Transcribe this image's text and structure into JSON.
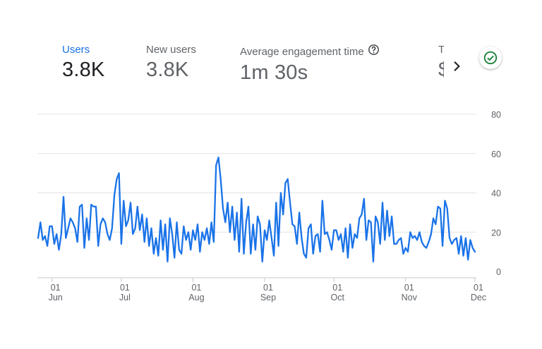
{
  "metrics": [
    {
      "label": "Users",
      "value": "3.8K"
    },
    {
      "label": "New users",
      "value": "3.8K"
    },
    {
      "label": "Average engagement time",
      "value": "1m 30s"
    },
    {
      "label": "T",
      "value": "$"
    }
  ],
  "icons": {
    "help": "help-circle-icon",
    "next": "chevron-right-icon",
    "status": "check-circle-icon"
  },
  "colors": {
    "series": "#1a73e8",
    "status_green": "#188038",
    "accent": "#1a73e8"
  },
  "chart_data": {
    "type": "line",
    "series": [
      {
        "name": "Users",
        "values": [
          17,
          25,
          16,
          18,
          13,
          23,
          23,
          14,
          19,
          11,
          19,
          38,
          17,
          22,
          27,
          25,
          22,
          15,
          33,
          34,
          12,
          27,
          16,
          34,
          33,
          33,
          13,
          24,
          27,
          25,
          19,
          16,
          22,
          39,
          47,
          50,
          14,
          36,
          23,
          26,
          35,
          19,
          22,
          33,
          21,
          29,
          15,
          27,
          13,
          22,
          9,
          17,
          8,
          26,
          11,
          24,
          5,
          27,
          19,
          7,
          25,
          11,
          9,
          23,
          16,
          20,
          11,
          21,
          16,
          24,
          10,
          20,
          16,
          22,
          14,
          25,
          15,
          54,
          58,
          47,
          32,
          25,
          35,
          20,
          33,
          16,
          30,
          10,
          37,
          9,
          25,
          33,
          9,
          24,
          11,
          28,
          24,
          5,
          21,
          16,
          26,
          17,
          8,
          35,
          13,
          40,
          29,
          45,
          47,
          35,
          24,
          23,
          14,
          30,
          17,
          9,
          7,
          22,
          24,
          9,
          18,
          19,
          10,
          36,
          19,
          20,
          16,
          11,
          21,
          21,
          16,
          19,
          10,
          22,
          7,
          24,
          12,
          19,
          17,
          27,
          29,
          37,
          16,
          26,
          25,
          5,
          28,
          25,
          14,
          35,
          16,
          31,
          18,
          28,
          14,
          14,
          16,
          17,
          9,
          12,
          10,
          20,
          17,
          18,
          16,
          20,
          15,
          13,
          12,
          15,
          19,
          27,
          24,
          33,
          32,
          13,
          36,
          32,
          17,
          14,
          16,
          17,
          9,
          18,
          8,
          17,
          6,
          16,
          12,
          10
        ]
      }
    ],
    "x_tick_labels": [
      {
        "day": "01",
        "month": "Jun"
      },
      {
        "day": "01",
        "month": "Jul"
      },
      {
        "day": "01",
        "month": "Aug"
      },
      {
        "day": "01",
        "month": "Sep"
      },
      {
        "day": "01",
        "month": "Oct"
      },
      {
        "day": "01",
        "month": "Nov"
      },
      {
        "day": "01",
        "month": "Dec"
      }
    ],
    "y_ticks": [
      0,
      20,
      40,
      60,
      80
    ],
    "ylim": [
      0,
      80
    ],
    "grid": true,
    "xlabel": "",
    "ylabel": ""
  }
}
